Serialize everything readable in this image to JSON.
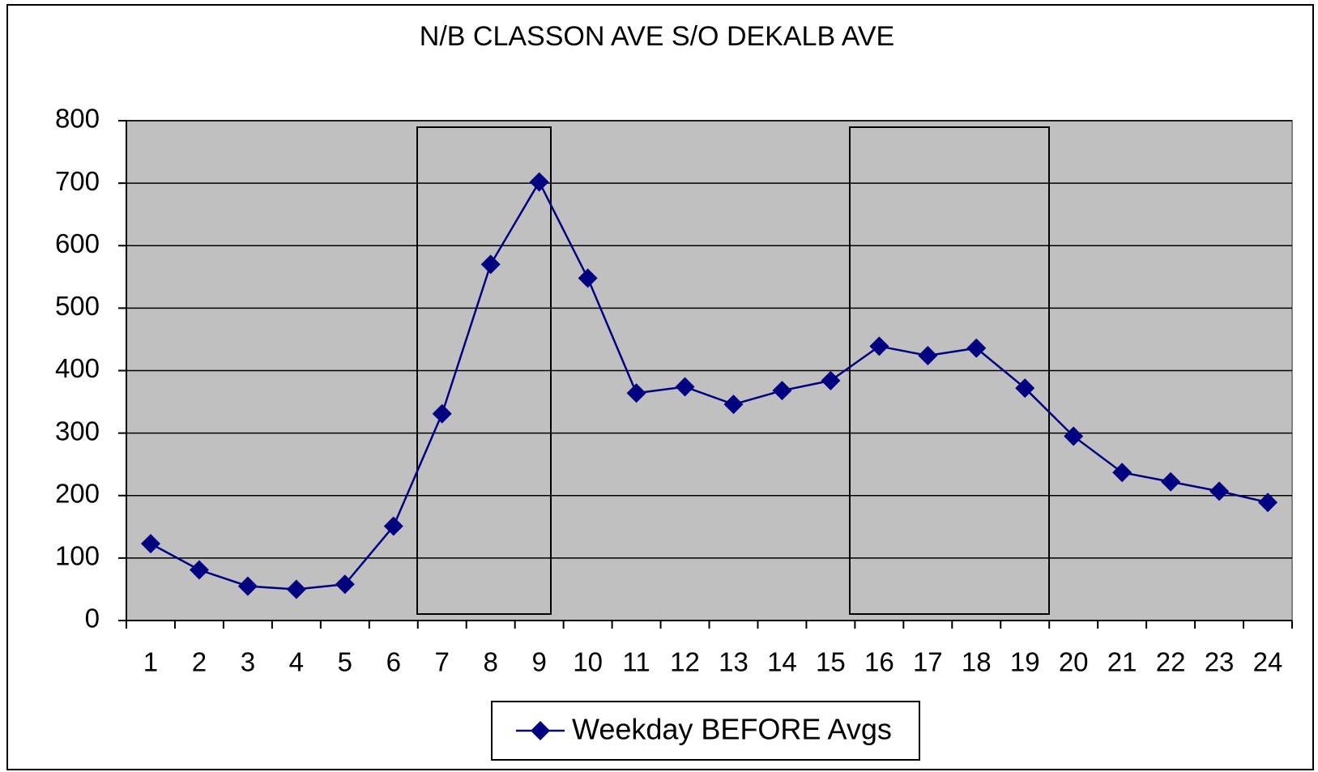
{
  "chart_data": {
    "type": "line",
    "title": "N/B CLASSON AVE S/O DEKALB AVE",
    "categories": [
      "1",
      "2",
      "3",
      "4",
      "5",
      "6",
      "7",
      "8",
      "9",
      "10",
      "11",
      "12",
      "13",
      "14",
      "15",
      "16",
      "17",
      "18",
      "19",
      "20",
      "21",
      "22",
      "23",
      "24"
    ],
    "series": [
      {
        "name": "Weekday BEFORE Avgs",
        "color": "#000080",
        "values": [
          123,
          81,
          55,
          50,
          58,
          151,
          331,
          570,
          702,
          548,
          364,
          374,
          346,
          368,
          384,
          439,
          424,
          436,
          372,
          295,
          237,
          222,
          207,
          189
        ]
      }
    ],
    "ylim": [
      0,
      800
    ],
    "yticks": [
      0,
      100,
      200,
      300,
      400,
      500,
      600,
      700,
      800
    ],
    "grid": true,
    "legend": "bottom"
  }
}
